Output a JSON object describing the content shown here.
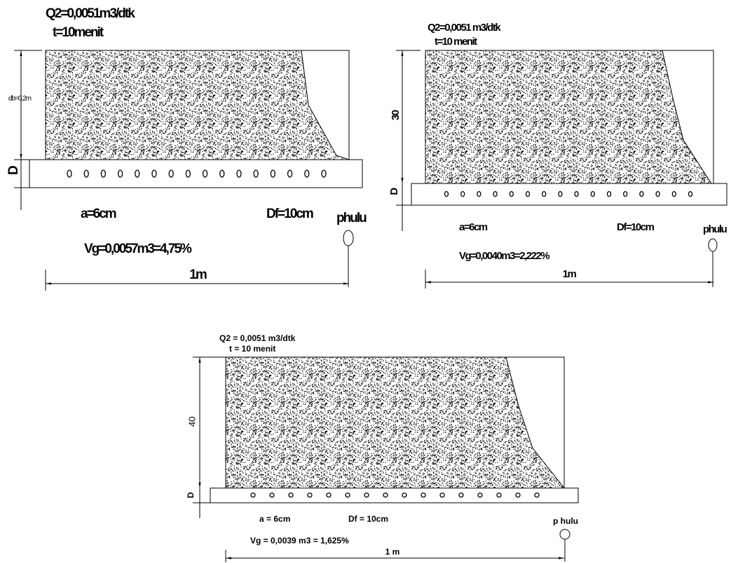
{
  "panels": [
    {
      "discharge": "Q2=0,0051m3/dtk",
      "time": "t=10menit",
      "height": "db=0,2m",
      "pipe": "D",
      "spacing": "a=6cm",
      "diameter": "Df=10cm",
      "upstream": "phulu",
      "volume": "Vg=0,0057m3=4,75%",
      "width": "1m"
    },
    {
      "discharge": "Q2=0,0051 m3/dtk",
      "time": "t=10 menit",
      "height": "30",
      "pipe": "D",
      "spacing": "a=6cm",
      "diameter": "Df=10cm",
      "upstream": "phulu",
      "volume": "Vg=0,0040m3=2,222%",
      "width": "1m"
    },
    {
      "discharge": "Q2 = 0,0051 m3/dtk",
      "time": "t = 10 menit",
      "height": "40",
      "pipe": "D",
      "spacing": "a = 6cm",
      "diameter": "Df = 10cm",
      "upstream": "p hulu",
      "volume": "Vg = 0,0039 m3 = 1,625%",
      "width": "1 m"
    }
  ]
}
